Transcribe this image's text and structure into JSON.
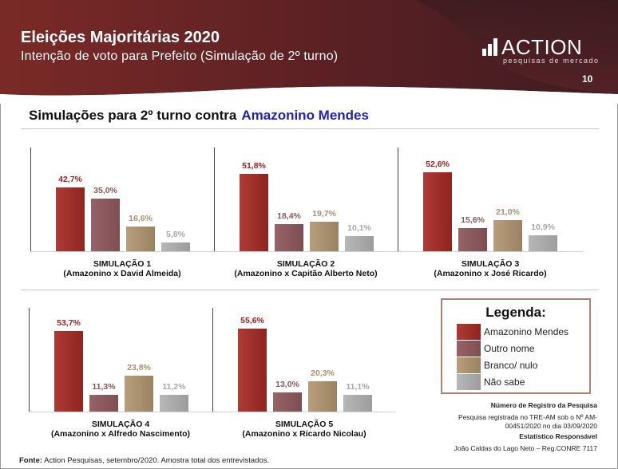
{
  "header": {
    "title": "Eleições Majoritárias 2020",
    "subtitle": "Intenção de voto para Prefeito (Simulação de 2º turno)",
    "logo_name": "ACTION",
    "logo_sub": "pesquisas de mercado",
    "page_number": "10"
  },
  "section": {
    "title": "Simulações para 2º turno contra",
    "highlight": "Amazonino Mendes"
  },
  "colors": {
    "amazonino": "#9e2a26",
    "outro": "#8a5a5e",
    "branco": "#a89070",
    "nao_sabe": "#a8a8a8"
  },
  "chart_data": [
    {
      "type": "bar",
      "title": "SIMULAÇÃO 1",
      "subtitle": "(Amazonino x David Almeida)",
      "categories": [
        "Amazonino Mendes",
        "Outro nome",
        "Branco/ nulo",
        "Não sabe"
      ],
      "values": [
        42.7,
        35.0,
        16.6,
        5.8
      ],
      "labels": [
        "42,7%",
        "35,0%",
        "16,6%",
        "5,8%"
      ],
      "ylim": [
        0,
        60
      ]
    },
    {
      "type": "bar",
      "title": "SIMULAÇÃO 2",
      "subtitle": "(Amazonino x Capitão Alberto Neto)",
      "categories": [
        "Amazonino Mendes",
        "Outro nome",
        "Branco/ nulo",
        "Não sabe"
      ],
      "values": [
        51.8,
        18.4,
        19.7,
        10.1
      ],
      "labels": [
        "51,8%",
        "18,4%",
        "19,7%",
        "10,1%"
      ],
      "ylim": [
        0,
        60
      ]
    },
    {
      "type": "bar",
      "title": "SIMULAÇÃO 3",
      "subtitle": "(Amazonino x José Ricardo)",
      "categories": [
        "Amazonino Mendes",
        "Outro nome",
        "Branco/ nulo",
        "Não sabe"
      ],
      "values": [
        52.6,
        15.6,
        21.0,
        10.9
      ],
      "labels": [
        "52,6%",
        "15,6%",
        "21,0%",
        "10,9%"
      ],
      "ylim": [
        0,
        60
      ]
    },
    {
      "type": "bar",
      "title": "SIMULAÇÃO 4",
      "subtitle": "(Amazonino x Alfredo Nascimento)",
      "categories": [
        "Amazonino Mendes",
        "Outro nome",
        "Branco/ nulo",
        "Não sabe"
      ],
      "values": [
        53.7,
        11.3,
        23.8,
        11.2
      ],
      "labels": [
        "53,7%",
        "11,3%",
        "23,8%",
        "11,2%"
      ],
      "ylim": [
        0,
        60
      ]
    },
    {
      "type": "bar",
      "title": "SIMULAÇÃO 5",
      "subtitle": "(Amazonino x Ricardo Nicolau)",
      "categories": [
        "Amazonino Mendes",
        "Outro nome",
        "Branco/ nulo",
        "Não sabe"
      ],
      "values": [
        55.6,
        13.0,
        20.3,
        11.1
      ],
      "labels": [
        "55,6%",
        "13,0%",
        "20,3%",
        "11,1%"
      ],
      "ylim": [
        0,
        60
      ]
    }
  ],
  "legend": {
    "title": "Legenda:",
    "items": [
      "Amazonino Mendes",
      "Outro nome",
      "Branco/ nulo",
      "Não sabe"
    ]
  },
  "registration": {
    "heading": "Número de Registro da Pesquisa",
    "line1": "Pesquisa registrada no TRE-AM sob o Nº AM-",
    "line2": "00451/2020 no dia 03/09/2020",
    "stat_heading": "Estatístico Responsável",
    "stat_name": "João Caldas do Lago Neto – Reg.CONRE 7117"
  },
  "footer": {
    "label": "Fonte:",
    "text": "Action Pesquisas, setembro/2020. Amostra total dos entrevistados."
  }
}
